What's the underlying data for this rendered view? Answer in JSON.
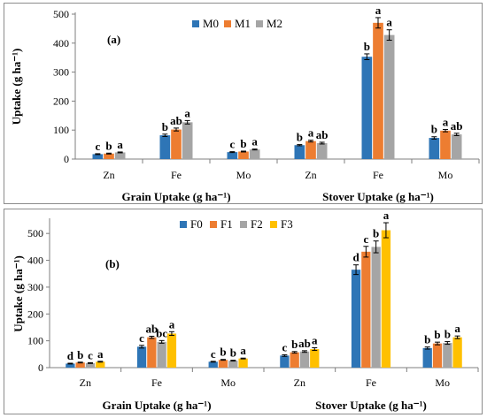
{
  "chart_data": [
    {
      "type": "bar",
      "panel_label": "(a)",
      "ylabel": "Uptake (g ha⁻¹)",
      "ylim": [
        0,
        500
      ],
      "yticks": [
        0,
        100,
        200,
        300,
        400,
        500
      ],
      "categories": [
        "Zn",
        "Fe",
        "Mo",
        "Zn",
        "Fe",
        "Mo"
      ],
      "groups": [
        "Grain Uptake (g ha⁻¹)",
        "Stover Uptake (g ha⁻¹)"
      ],
      "legend_position": "top-center",
      "series": [
        {
          "name": "M0",
          "color": "#2E75B6",
          "values": [
            17,
            82,
            24,
            48,
            353,
            73
          ],
          "errors": [
            1.5,
            4,
            1.5,
            2,
            10,
            4
          ],
          "letters": [
            "c",
            "b",
            "c",
            "b",
            "b",
            "b"
          ]
        },
        {
          "name": "M1",
          "color": "#ED7D31",
          "values": [
            19,
            102,
            26,
            62,
            470,
            98
          ],
          "errors": [
            1.5,
            5,
            1.5,
            3,
            18,
            4
          ],
          "letters": [
            "b",
            "ab",
            "b",
            "a",
            "a",
            "a"
          ]
        },
        {
          "name": "M2",
          "color": "#A5A5A5",
          "values": [
            23,
            127,
            33,
            55,
            428,
            85
          ],
          "errors": [
            1.5,
            6,
            1.5,
            3,
            18,
            4
          ],
          "letters": [
            "a",
            "a",
            "a",
            "ab",
            "a",
            "ab"
          ]
        }
      ]
    },
    {
      "type": "bar",
      "panel_label": "(b)",
      "ylabel": "Uptake (g ha⁻¹)",
      "ylim": [
        0,
        550
      ],
      "yticks": [
        0,
        100,
        200,
        300,
        400,
        500
      ],
      "categories": [
        "Zn",
        "Fe",
        "Mo",
        "Zn",
        "Fe",
        "Mo"
      ],
      "groups": [
        "Grain Uptake (g ha⁻¹)",
        "Stover Uptake (g ha⁻¹)"
      ],
      "legend_position": "top-center",
      "series": [
        {
          "name": "F0",
          "color": "#2E75B6",
          "values": [
            15,
            78,
            22,
            45,
            365,
            73
          ],
          "errors": [
            1.5,
            5,
            1.5,
            3,
            18,
            4
          ],
          "letters": [
            "d",
            "c",
            "c",
            "c",
            "d",
            "b"
          ]
        },
        {
          "name": "F1",
          "color": "#ED7D31",
          "values": [
            19,
            113,
            29,
            57,
            432,
            90
          ],
          "errors": [
            1.5,
            4,
            1.5,
            3,
            20,
            5
          ],
          "letters": [
            "b",
            "ab",
            "b",
            "b",
            "c",
            "b"
          ]
        },
        {
          "name": "F2",
          "color": "#A5A5A5",
          "values": [
            17,
            96,
            26,
            60,
            450,
            92
          ],
          "errors": [
            1.5,
            5,
            1.5,
            3,
            22,
            5
          ],
          "letters": [
            "c",
            "bc",
            "b",
            "ab",
            "b",
            "b"
          ]
        },
        {
          "name": "F3",
          "color": "#FFC000",
          "values": [
            22,
            127,
            34,
            69,
            512,
            113
          ],
          "errors": [
            1.5,
            7,
            1.5,
            5,
            28,
            5
          ],
          "letters": [
            "a",
            "a",
            "a",
            "a",
            "a",
            "a"
          ]
        }
      ]
    }
  ]
}
